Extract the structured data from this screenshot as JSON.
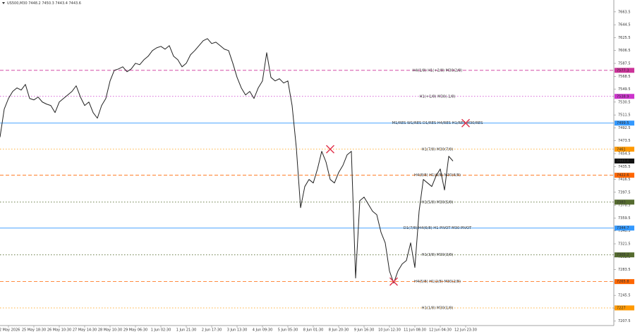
{
  "chart_data": {
    "type": "line",
    "title": "US500,M30  7448.2 7450.3 7443.4 7443.6",
    "x": [
      0,
      1,
      2,
      3,
      4,
      5,
      6,
      7,
      8,
      9,
      10,
      11,
      12,
      13,
      14,
      15,
      16,
      17,
      18,
      19,
      20,
      21,
      22,
      23,
      24,
      25,
      26,
      27,
      28,
      29,
      30,
      31,
      32,
      33,
      34,
      35,
      36,
      37,
      38,
      39,
      40,
      41,
      42,
      43,
      44,
      45,
      46,
      47,
      48,
      49,
      50,
      51,
      52,
      53,
      54,
      55,
      56,
      57,
      58,
      59,
      60,
      61,
      62,
      63,
      64,
      65,
      66,
      67,
      68,
      69,
      70,
      71,
      72,
      73,
      74,
      75,
      76,
      77,
      78,
      79,
      80,
      81,
      82,
      83,
      84,
      85,
      86,
      87,
      88,
      89,
      90,
      91,
      92,
      93,
      94,
      95,
      96,
      97,
      98,
      99,
      100,
      101,
      102,
      103,
      104,
      105,
      106,
      107
    ],
    "series": [
      {
        "color": "#222222",
        "values": [
          7478.7,
          7520.2,
          7535.8,
          7546.2,
          7551.4,
          7548.2,
          7556.5,
          7535.8,
          7533.7,
          7537.9,
          7530.6,
          7527.5,
          7525.4,
          7515.0,
          7530.6,
          7535.8,
          7541.0,
          7546.2,
          7554.5,
          7537.9,
          7525.4,
          7530.6,
          7515.0,
          7506.7,
          7525.4,
          7535.8,
          7561.7,
          7577.3,
          7579.4,
          7582.5,
          7575.2,
          7579.4,
          7587.7,
          7585.6,
          7592.9,
          7598.1,
          7606.4,
          7610.5,
          7612.6,
          7608.5,
          7613.7,
          7598.1,
          7592.9,
          7582.5,
          7587.7,
          7600.2,
          7606.4,
          7613.7,
          7620.9,
          7624.0,
          7616.8,
          7618.8,
          7613.7,
          7608.5,
          7606.4,
          7587.7,
          7566.9,
          7551.4,
          7541.0,
          7546.2,
          7535.8,
          7551.4,
          7561.7,
          7603.3,
          7566.9,
          7561.7,
          7564.9,
          7558.6,
          7561.7,
          7525.4,
          7463.1,
          7374.8,
          7406.0,
          7416.4,
          7411.2,
          7431.9,
          7457.9,
          7442.3,
          7416.4,
          7411.2,
          7426.7,
          7437.1,
          7452.7,
          7457.9,
          7271.0,
          7385.2,
          7390.4,
          7380.0,
          7369.6,
          7364.4,
          7338.5,
          7322.9,
          7281.4,
          7263.7,
          7281.4,
          7291.8,
          7296.9,
          7322.9,
          7286.6,
          7369.6,
          7416.4,
          7411.2,
          7406.0,
          7421.6,
          7431.9,
          7400.8,
          7450.6,
          7443.6
        ]
      }
    ],
    "xlim": [
      0,
      145
    ],
    "ylim": [
      7201,
      7681
    ],
    "xticks": [
      {
        "value": 2,
        "label": "22 May 2026"
      },
      {
        "value": 8,
        "label": "25 May 18:30"
      },
      {
        "value": 14,
        "label": "26 May 10:30"
      },
      {
        "value": 20,
        "label": "27 May 14:30"
      },
      {
        "value": 26,
        "label": "28 May 10:30"
      },
      {
        "value": 32,
        "label": "29 May 06:30"
      },
      {
        "value": 38,
        "label": "1 Jun 02:30"
      },
      {
        "value": 44,
        "label": "1 Jun 21:30"
      },
      {
        "value": 50,
        "label": "2 Jun 17:30"
      },
      {
        "value": 56,
        "label": "3 Jun 13:30"
      },
      {
        "value": 62,
        "label": "4 Jun 09:30"
      },
      {
        "value": 68,
        "label": "5 Jun 05:30"
      },
      {
        "value": 74,
        "label": "8 Jun 01:30"
      },
      {
        "value": 80,
        "label": "8 Jun 20:30"
      },
      {
        "value": 86,
        "label": "9 Jun 16:30"
      },
      {
        "value": 92,
        "label": "10 Jun 12:30"
      },
      {
        "value": 98,
        "label": "11 Jun 08:30"
      },
      {
        "value": 104,
        "label": "12 Jun 04:30"
      },
      {
        "value": 110,
        "label": "12 Jun 23:30"
      }
    ],
    "yticks": [
      7663.5,
      7644.5,
      7625.5,
      7606.5,
      7587.5,
      7568.5,
      7549.5,
      7530.5,
      7511.5,
      7492.5,
      7473.5,
      7454.5,
      7435.5,
      7416.5,
      7397.5,
      7378.5,
      7359.5,
      7340.5,
      7321.5,
      7302.5,
      7283.5,
      7264.5,
      7245.5,
      7226.5,
      7207.5
    ],
    "levels": [
      {
        "label": "H4(1/8) H1(+2/8) M30(2/8)",
        "value": 7577.3,
        "color": "#cc3399",
        "style": "dashed"
      },
      {
        "label": "H1(+1/8) M30(-1/8)",
        "value": 7538.9,
        "color": "#cc33cc",
        "style": "dotted"
      },
      {
        "label": "M1/RES W1/RES D1/RES H4/RES H1/RES M30/RES",
        "value": 7499.5,
        "color": "#3399ff",
        "style": "solid"
      },
      {
        "label": "H1(7/8) M30(7/8)",
        "value": 7461.0,
        "color": "#ff9900",
        "style": "dotted"
      },
      {
        "label": "H4(8/8) H1(6/8) M30(6/8)",
        "value": 7422.6,
        "color": "#ff6600",
        "style": "dashed"
      },
      {
        "label": "H1(5/8) M30(5/8)",
        "value": 7383.0,
        "color": "#556b2f",
        "style": "dotted"
      },
      {
        "label": "D1(7/8) H4(6/8) H1 PIVOT M30 PIVOT",
        "value": 7344.7,
        "color": "#3399ff",
        "style": "solid"
      },
      {
        "label": "H1(3/8) M30(3/8)",
        "value": 7305.2,
        "color": "#556b2f",
        "style": "dotted"
      },
      {
        "label": "H4(5/8) H1(2/8) M30(2/8)",
        "value": 7265.8,
        "color": "#ff6600",
        "style": "dashed"
      },
      {
        "label": "H1(1/8) M30(1/8)",
        "value": 7227.0,
        "color": "#ff9900",
        "style": "dotted"
      }
    ],
    "markers": [
      {
        "x": 78,
        "y": 7461.0
      },
      {
        "x": 110,
        "y": 7499.5
      },
      {
        "x": 93,
        "y": 7265.8
      }
    ],
    "marker_color": "#e0304a"
  }
}
